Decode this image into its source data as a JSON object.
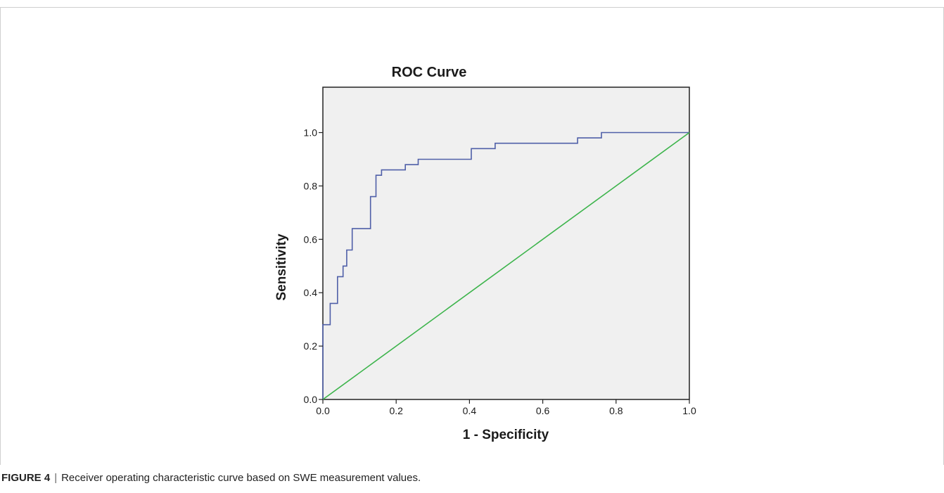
{
  "chart_data": {
    "type": "line",
    "title": "ROC Curve",
    "xlabel": "1 - Specificity",
    "ylabel": "Sensitivity",
    "xlim": [
      0,
      1
    ],
    "ylim": [
      0,
      1.17
    ],
    "x_ticks": [
      "0.0",
      "0.2",
      "0.4",
      "0.6",
      "0.8",
      "1.0"
    ],
    "y_ticks": [
      "0.0",
      "0.2",
      "0.4",
      "0.6",
      "0.8",
      "1.0"
    ],
    "grid": false,
    "plot_background": "#f0f0f0",
    "series": [
      {
        "color": "#4f5fa8",
        "step": true,
        "points": [
          [
            0,
            0
          ],
          [
            0,
            0.28
          ],
          [
            0.02,
            0.28
          ],
          [
            0.02,
            0.36
          ],
          [
            0.04,
            0.36
          ],
          [
            0.04,
            0.46
          ],
          [
            0.055,
            0.46
          ],
          [
            0.055,
            0.5
          ],
          [
            0.065,
            0.5
          ],
          [
            0.065,
            0.56
          ],
          [
            0.08,
            0.56
          ],
          [
            0.08,
            0.64
          ],
          [
            0.13,
            0.64
          ],
          [
            0.13,
            0.76
          ],
          [
            0.145,
            0.76
          ],
          [
            0.145,
            0.84
          ],
          [
            0.16,
            0.84
          ],
          [
            0.16,
            0.86
          ],
          [
            0.225,
            0.86
          ],
          [
            0.225,
            0.88
          ],
          [
            0.26,
            0.88
          ],
          [
            0.26,
            0.9
          ],
          [
            0.405,
            0.9
          ],
          [
            0.405,
            0.94
          ],
          [
            0.47,
            0.94
          ],
          [
            0.47,
            0.96
          ],
          [
            0.695,
            0.96
          ],
          [
            0.695,
            0.98
          ],
          [
            0.76,
            0.98
          ],
          [
            0.76,
            1.0
          ],
          [
            1.0,
            1.0
          ]
        ]
      },
      {
        "color": "#3cb44b",
        "points": [
          [
            0,
            0
          ],
          [
            1,
            1
          ]
        ]
      }
    ]
  },
  "caption": {
    "label": "FIGURE 4",
    "separator": "|",
    "text": "Receiver operating characteristic curve based on SWE measurement values."
  }
}
